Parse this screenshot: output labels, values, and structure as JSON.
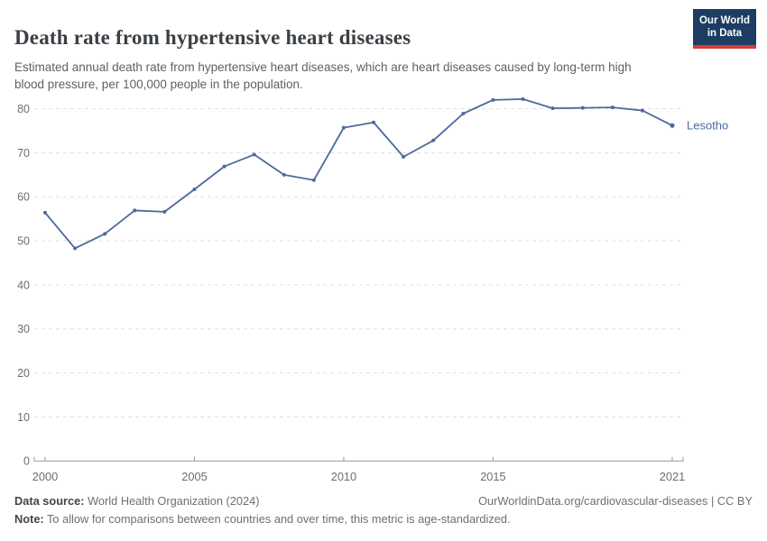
{
  "header": {
    "title": "Death rate from hypertensive heart diseases",
    "subtitle": "Estimated annual death rate from hypertensive heart diseases, which are heart diseases caused by long-term high blood pressure, per 100,000 people in the population.",
    "logo": {
      "line1": "Our World",
      "line2": "in Data"
    }
  },
  "chart_data": {
    "type": "line",
    "title": "Death rate from hypertensive heart diseases",
    "x": [
      2000,
      2001,
      2002,
      2003,
      2004,
      2005,
      2006,
      2007,
      2008,
      2009,
      2010,
      2011,
      2012,
      2013,
      2014,
      2015,
      2016,
      2017,
      2018,
      2019,
      2020,
      2021
    ],
    "series": [
      {
        "name": "Lesotho",
        "color": "#4c6a9c",
        "values": [
          56.4,
          48.3,
          51.6,
          56.9,
          56.6,
          61.7,
          66.9,
          69.6,
          65.0,
          63.8,
          75.7,
          76.9,
          69.1,
          72.8,
          78.9,
          82.0,
          82.2,
          80.1,
          80.2,
          80.3,
          79.6,
          76.2
        ]
      }
    ],
    "xlabel": "",
    "ylabel": "",
    "xlim": [
      2000,
      2021
    ],
    "ylim": [
      0,
      83.2
    ],
    "xticks": [
      2000,
      2005,
      2010,
      2015,
      2021
    ],
    "yticks": [
      0,
      10,
      20,
      30,
      40,
      50,
      60,
      70,
      80
    ],
    "grid": "horizontal-dashed",
    "legend_position": "end-of-line-label",
    "colors": {
      "grid": "#e0e0e0",
      "axis": "#999999",
      "tick_label": "#6e6e6e",
      "series_label": "#4c6a9c"
    }
  },
  "footer": {
    "datasource_label": "Data source:",
    "datasource_value": " World Health Organization (2024)",
    "link": "OurWorldinData.org/cardiovascular-diseases | CC BY",
    "note_label": "Note:",
    "note_value": " To allow for comparisons between countries and over time, this metric is age-standardized."
  }
}
